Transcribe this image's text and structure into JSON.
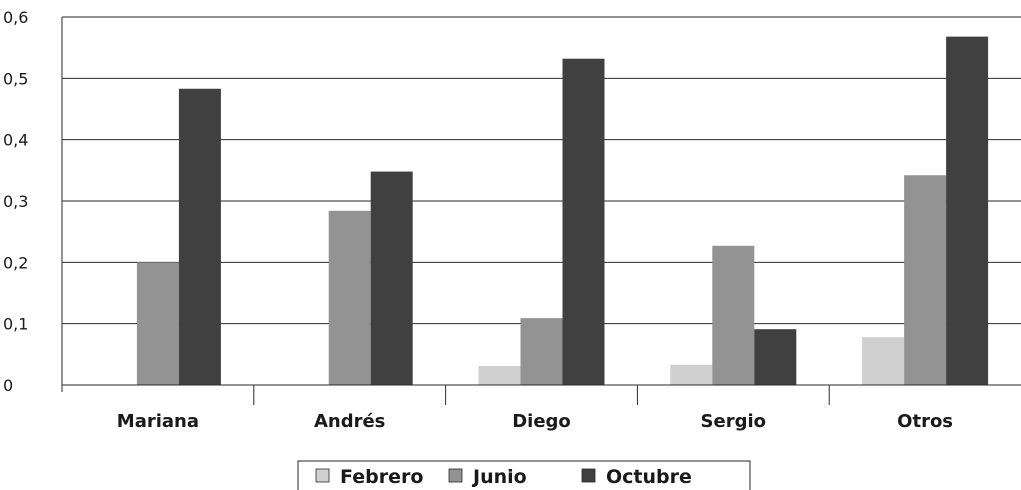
{
  "chart_data": {
    "type": "bar",
    "title": "",
    "xlabel": "",
    "ylabel": "",
    "categories": [
      "Mariana",
      "Andrés",
      "Diego",
      "Sergio",
      "Otros"
    ],
    "series": [
      {
        "name": "Febrero",
        "values": [
          0,
          0,
          0.031,
          0.033,
          0.078
        ],
        "color": "#d0d0d0"
      },
      {
        "name": "Junio",
        "values": [
          0.2,
          0.284,
          0.109,
          0.227,
          0.342
        ],
        "color": "#939393"
      },
      {
        "name": "Octubre",
        "values": [
          0.483,
          0.348,
          0.532,
          0.091,
          0.568
        ],
        "color": "#404040"
      }
    ],
    "ylim": [
      0,
      0.6
    ],
    "yticks": [
      0,
      0.1,
      0.2,
      0.3,
      0.4,
      0.5,
      0.6
    ],
    "ytick_labels": [
      "0",
      "0,1",
      "0,2",
      "0,3",
      "0,4",
      "0,5",
      "0,6"
    ],
    "grid": "horizontal",
    "legend_position": "bottom"
  }
}
